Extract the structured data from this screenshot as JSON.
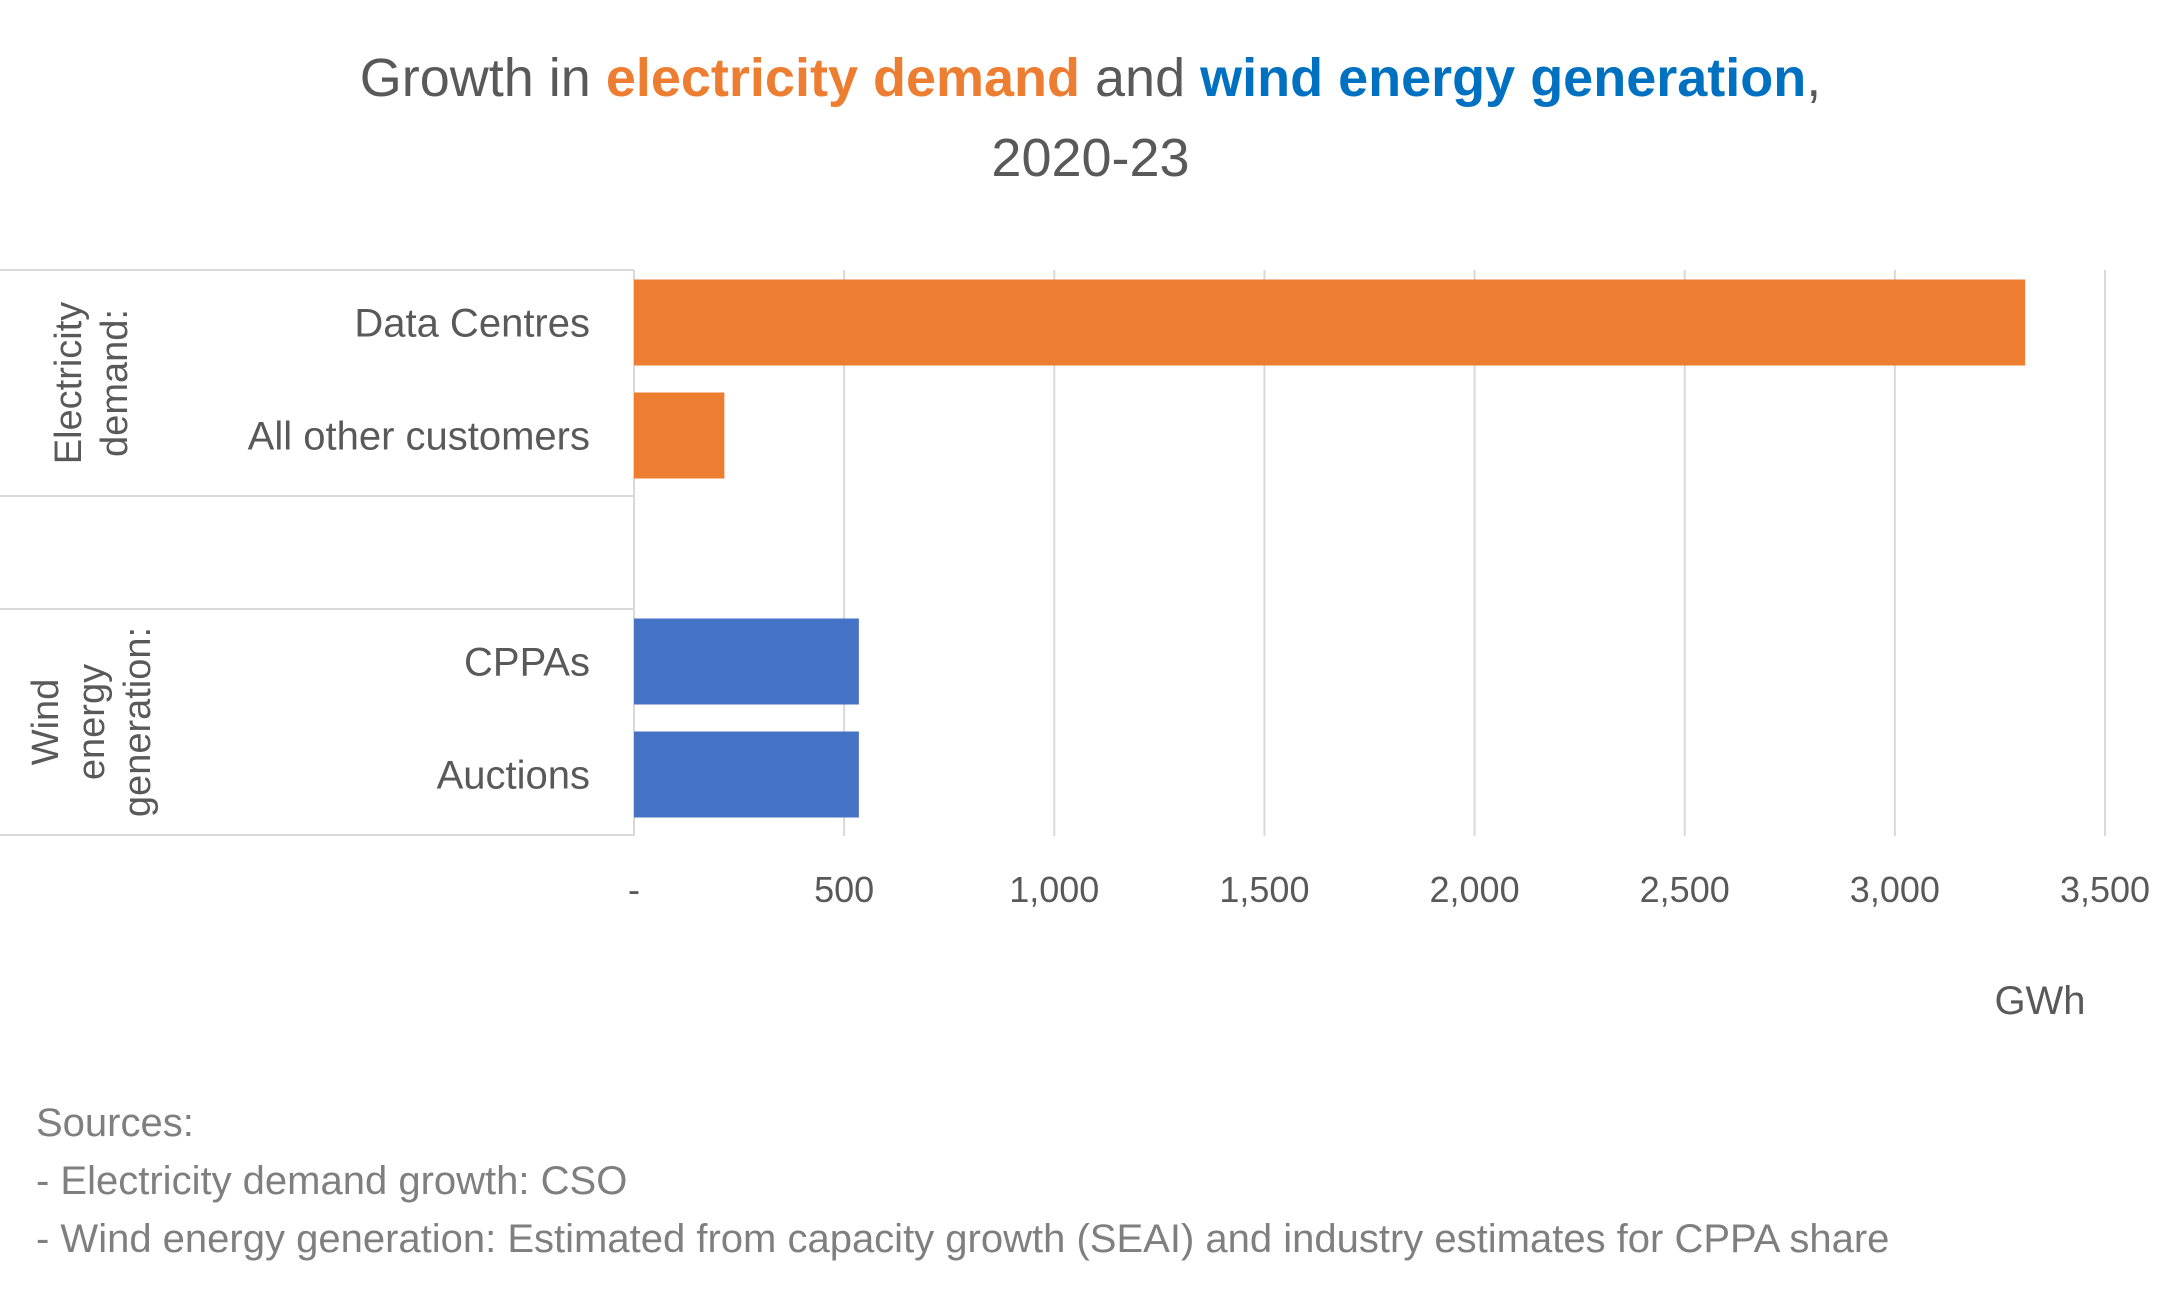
{
  "title": {
    "part1": "Growth in ",
    "highlight1": "electricity demand",
    "part2": " and ",
    "highlight2": "wind energy generation",
    "part3": ",",
    "line2": "2020-23"
  },
  "colors": {
    "demand": "#ED7D31",
    "wind": "#4472C4",
    "title_orange": "#ED7D31",
    "title_blue": "#0070C0",
    "grid": "#D9D9D9",
    "text": "#595959",
    "sources_text": "#7F7F7F"
  },
  "chart_data": {
    "type": "bar",
    "orientation": "horizontal",
    "xlabel": "GWh",
    "xlim": [
      0,
      3500
    ],
    "xticks": [
      0,
      500,
      1000,
      1500,
      2000,
      2500,
      3000,
      3500
    ],
    "xtick_labels": [
      "-",
      "500",
      "1,000",
      "1,500",
      "2,000",
      "2,500",
      "3,000",
      "3,500"
    ],
    "grid": true,
    "legend": "none",
    "groups": [
      {
        "label": "Electricity demand:",
        "label_lines": [
          "Electricity",
          "demand:"
        ],
        "color": "#ED7D31",
        "categories": [
          "Data Centres",
          "All other customers"
        ],
        "values": [
          3310,
          215
        ]
      },
      {
        "label": "Wind energy generation:",
        "label_lines": [
          "Wind",
          "energy",
          "generation:"
        ],
        "color": "#4472C4",
        "categories": [
          "CPPAs",
          "Auctions"
        ],
        "values": [
          535,
          535
        ]
      }
    ]
  },
  "sources": {
    "heading": "Sources:",
    "lines": [
      "- Electricity demand growth: CSO",
      "- Wind energy generation: Estimated from capacity growth (SEAI) and industry estimates for CPPA share"
    ]
  }
}
